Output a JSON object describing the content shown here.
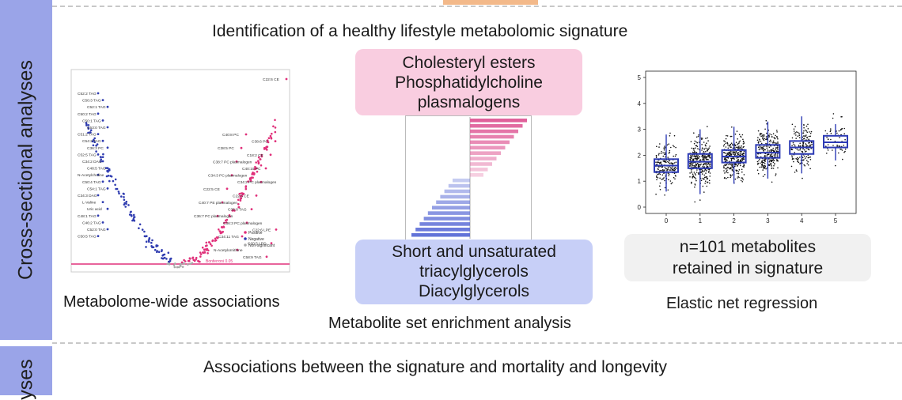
{
  "sidebar": {
    "section1_label": "Cross-sectional analyses",
    "section2_label": "yses"
  },
  "header": {
    "title": "Identification of a healthy lifestyle metabolomic signature"
  },
  "panels": {
    "left_caption": "Metabolome-wide associations",
    "middle_caption": "Metabolite set enrichment analysis",
    "right_caption": "Elastic net regression"
  },
  "pink_box": {
    "lines": [
      "Cholesteryl esters",
      "Phosphatidylcholine",
      "plasmalogens"
    ]
  },
  "blue_box": {
    "lines": [
      "Short and unsaturated",
      "triacylglycerols",
      "Diacylglycerols"
    ]
  },
  "grey_box": {
    "lines": [
      "n=101 metabolites",
      "retained in signature"
    ]
  },
  "footer": {
    "title": "Associations between the signature and mortality and longevity"
  },
  "volcano": {
    "legend": [
      "Positive",
      "Negative",
      "Non-significant"
    ],
    "threshold_label": "Bonferroni 0.05",
    "left_labels": [
      "C52:2 TAG",
      "C50:3 TAG",
      "C52:1 TAG",
      "C50:2 TAG",
      "C50:1 TAG",
      "C53:0 TAG",
      "C51:2 TAG",
      "C54:2 TAG",
      "C36:3 PC",
      "C52:5 TAG",
      "C34:2 DAG",
      "C48:5 TAG",
      "N-Acetylcholine",
      "C50:4 TAG",
      "C54:1 TAG",
      "C34:3 DAG",
      "L-Valine",
      "Uric acid",
      "C48:1 TAG",
      "C46:2 TAG",
      "C52:0 TAG",
      "C50:5 TAG"
    ],
    "right_labels": [
      "C22:6 CE",
      "C40:8 PC",
      "C38:6 PC",
      "C38:5 PC",
      "C18:2 CE",
      "C38:7 PC plasmalogen",
      "C40:10 PC",
      "C34:3 PC plasmalogen",
      "C34:2 PC plasmalogen",
      "C22:5 CE",
      "C22:5 CE",
      "C40:7 PE plasmalogen",
      "C36:8 TAG",
      "C36:7 PC plasmalogen",
      "C36:3 PC plasmalogen",
      "C22:6 LPE",
      "C34:11 TAG",
      "C20:5 LPC",
      "N-Acetylornithine",
      "C58:9 TAG"
    ],
    "colors": {
      "positive": "#e0307a",
      "negative": "#2f3cb0",
      "nonsig": "#aaaaaa"
    }
  },
  "chart_data": {
    "type": "box",
    "title": "",
    "xlabel": "",
    "ylabel": "",
    "x": [
      0,
      1,
      2,
      3,
      4,
      5
    ],
    "x_tick_labels": [
      "0",
      "1",
      "2",
      "3",
      "4",
      "5"
    ],
    "y_tick_labels": [
      "0",
      "1",
      "2",
      "3",
      "4",
      "5"
    ],
    "ylim": [
      0,
      5
    ],
    "series": [
      {
        "median": [
          1.6,
          1.75,
          1.95,
          2.1,
          2.3,
          2.5
        ],
        "q1": [
          1.35,
          1.5,
          1.72,
          1.9,
          2.05,
          2.3
        ],
        "q3": [
          1.85,
          2.05,
          2.2,
          2.4,
          2.55,
          2.75
        ],
        "whisker_low": [
          0.6,
          0.5,
          0.9,
          1.1,
          1.3,
          1.8
        ],
        "whisker_high": [
          2.8,
          3.0,
          3.1,
          3.3,
          3.5,
          3.2
        ]
      }
    ],
    "colors": {
      "box": "#2d3bb5",
      "points": "#111111"
    }
  },
  "enrichment_bars": {
    "positive_color": "#e0609a",
    "negative_color": "#5a6bd6"
  }
}
